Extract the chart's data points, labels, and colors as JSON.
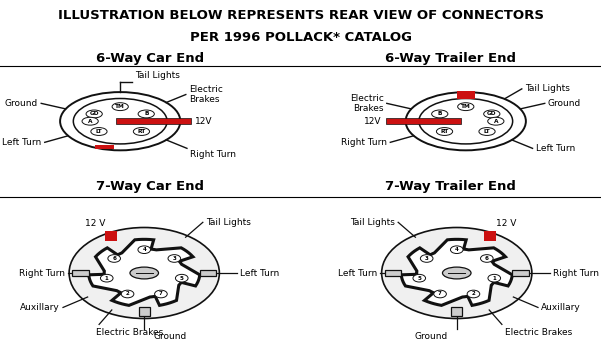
{
  "title_line1": "ILLUSTRATION BELOW REPRESENTS REAR VIEW OF CONNECTORS",
  "title_line2": "PER 1996 POLLACK* CATALOG",
  "panel_titles": [
    "6-Way Car End",
    "6-Way Trailer End",
    "7-Way Car End",
    "7-Way Trailer End"
  ],
  "bg": "#ffffff",
  "border": "#000000",
  "red": "#cc1111",
  "dark": "#111111",
  "gray": "#cccccc",
  "title_fs": 9.5,
  "panel_fs": 9.5,
  "label_fs": 6.5,
  "pin_fs": 4.2
}
